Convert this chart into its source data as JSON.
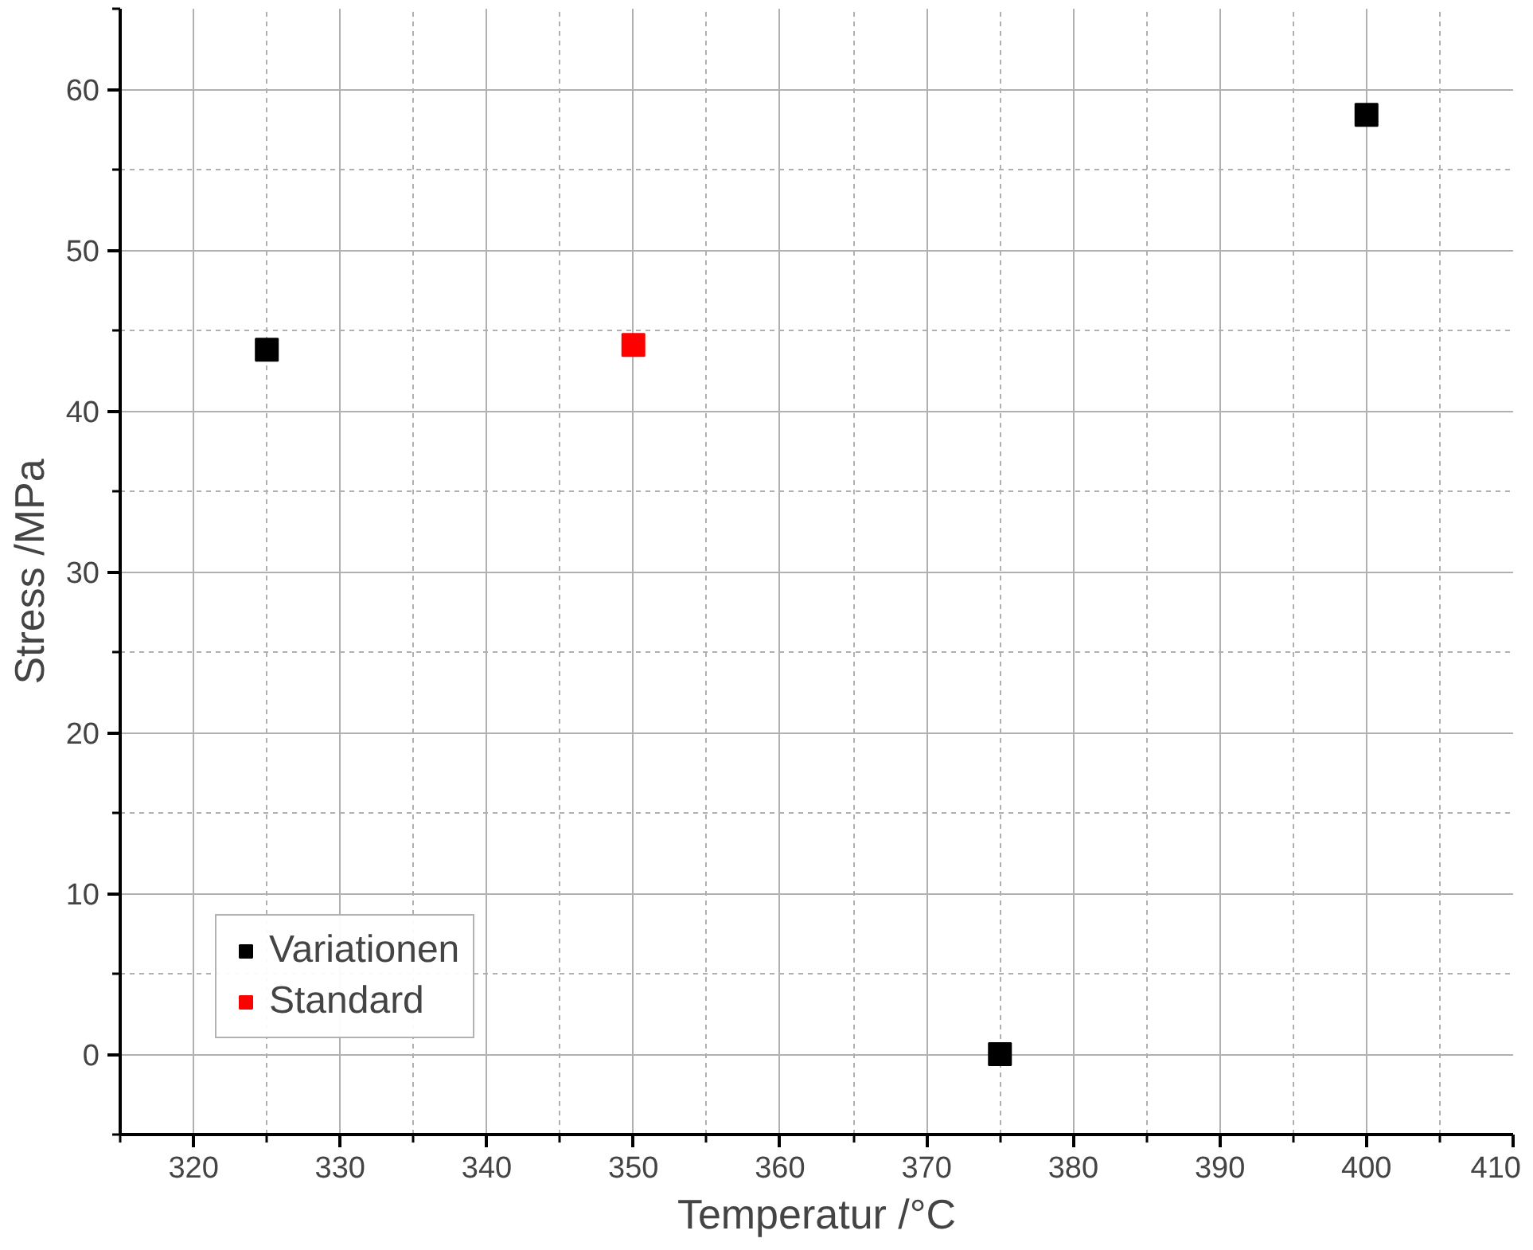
{
  "chart_data": {
    "type": "scatter",
    "xlabel": "Temperatur /°C",
    "ylabel": "Stress /MPa",
    "xlim": [
      315,
      410
    ],
    "xticks": [
      320,
      330,
      340,
      350,
      360,
      370,
      380,
      390,
      400,
      410
    ],
    "ylim": [
      -5,
      65
    ],
    "yticks": [
      0,
      10,
      20,
      30,
      40,
      50,
      60
    ],
    "grid": true,
    "legend": "bottom left",
    "marker": "square",
    "series": [
      {
        "name": "Variationen",
        "color": "#000000",
        "x": [
          325,
          375,
          400
        ],
        "values": [
          43.8,
          0,
          58.4
        ]
      },
      {
        "name": "Standard",
        "color": "#ff0000",
        "x": [
          350
        ],
        "values": [
          44.1
        ]
      }
    ]
  }
}
